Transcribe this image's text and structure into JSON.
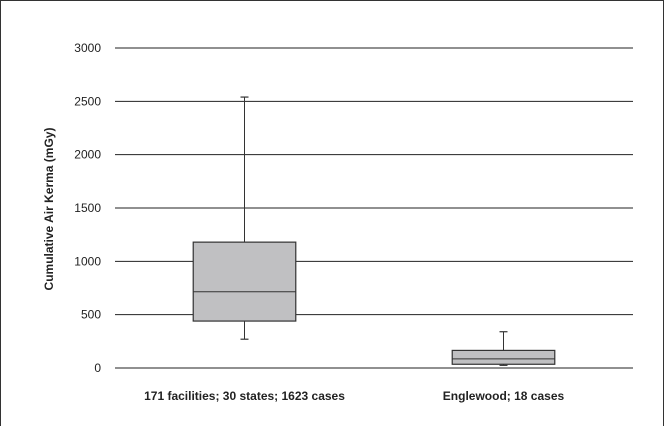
{
  "chart_data": {
    "type": "box",
    "title": "",
    "xlabel": "",
    "ylabel": "Cumulative Air Kerma (mGy)",
    "ylim": [
      0,
      3000
    ],
    "yticks": [
      0,
      500,
      1000,
      1500,
      2000,
      2500,
      3000
    ],
    "ytick_labels": [
      "0",
      "500",
      "1000",
      "1500",
      "2000",
      "2500",
      "3000"
    ],
    "grid": true,
    "legend": "none",
    "categories": [
      "171 facilities; 30 states; 1623 cases",
      "Englewood; 18 cases"
    ],
    "boxes": [
      {
        "category": "171 facilities; 30 states; 1623 cases",
        "whisker_low": 270,
        "q1": 440,
        "median": 715,
        "q3": 1180,
        "whisker_high": 2540
      },
      {
        "category": "Englewood; 18 cases",
        "whisker_low": 25,
        "q1": 35,
        "median": 85,
        "q3": 165,
        "whisker_high": 340
      }
    ],
    "colors": {
      "box_fill": "#c0c0c2",
      "box_stroke": "#333333",
      "grid": "#222222"
    }
  }
}
